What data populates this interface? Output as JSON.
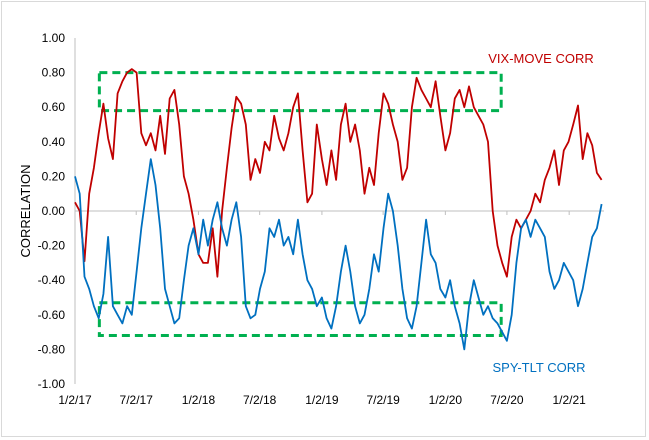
{
  "chart_data": {
    "type": "line",
    "title": "",
    "xlabel": "",
    "ylabel": "CORRELATION",
    "ylim": [
      -1.0,
      1.0
    ],
    "yticks": [
      "1.00",
      "0.80",
      "0.60",
      "0.40",
      "0.20",
      "0.00",
      "-0.20",
      "-0.40",
      "-0.60",
      "-0.80",
      "-1.00"
    ],
    "yticks_values": [
      1.0,
      0.8,
      0.6,
      0.4,
      0.2,
      0.0,
      -0.2,
      -0.4,
      -0.6,
      -0.8,
      -1.0
    ],
    "xticks": [
      "1/2/17",
      "7/2/17",
      "1/2/18",
      "7/2/18",
      "1/2/19",
      "7/2/19",
      "1/2/20",
      "7/2/20",
      "1/2/21"
    ],
    "xlim": [
      "2017-01-02",
      "2021-04-15"
    ],
    "grid": false,
    "series": [
      {
        "name": "VIX-MOVE CORR",
        "color": "#c00000",
        "points": [
          [
            "2017-01-02",
            0.05
          ],
          [
            "2017-01-16",
            0.0
          ],
          [
            "2017-01-30",
            -0.29
          ],
          [
            "2017-02-13",
            0.1
          ],
          [
            "2017-02-27",
            0.25
          ],
          [
            "2017-03-13",
            0.45
          ],
          [
            "2017-03-27",
            0.62
          ],
          [
            "2017-04-10",
            0.42
          ],
          [
            "2017-04-24",
            0.3
          ],
          [
            "2017-05-08",
            0.68
          ],
          [
            "2017-05-22",
            0.75
          ],
          [
            "2017-06-05",
            0.8
          ],
          [
            "2017-06-19",
            0.82
          ],
          [
            "2017-07-03",
            0.8
          ],
          [
            "2017-07-17",
            0.45
          ],
          [
            "2017-07-31",
            0.38
          ],
          [
            "2017-08-14",
            0.45
          ],
          [
            "2017-08-28",
            0.35
          ],
          [
            "2017-09-11",
            0.55
          ],
          [
            "2017-09-25",
            0.33
          ],
          [
            "2017-10-09",
            0.65
          ],
          [
            "2017-10-23",
            0.7
          ],
          [
            "2017-11-06",
            0.5
          ],
          [
            "2017-11-20",
            0.2
          ],
          [
            "2017-12-04",
            0.1
          ],
          [
            "2017-12-18",
            -0.05
          ],
          [
            "2018-01-02",
            -0.25
          ],
          [
            "2018-01-16",
            -0.3
          ],
          [
            "2018-01-30",
            -0.3
          ],
          [
            "2018-02-13",
            -0.1
          ],
          [
            "2018-02-27",
            -0.38
          ],
          [
            "2018-03-13",
            0.0
          ],
          [
            "2018-03-27",
            0.25
          ],
          [
            "2018-04-10",
            0.48
          ],
          [
            "2018-04-24",
            0.66
          ],
          [
            "2018-05-08",
            0.62
          ],
          [
            "2018-05-22",
            0.5
          ],
          [
            "2018-06-05",
            0.18
          ],
          [
            "2018-06-19",
            0.3
          ],
          [
            "2018-07-03",
            0.22
          ],
          [
            "2018-07-17",
            0.4
          ],
          [
            "2018-07-31",
            0.35
          ],
          [
            "2018-08-14",
            0.55
          ],
          [
            "2018-08-28",
            0.42
          ],
          [
            "2018-09-11",
            0.35
          ],
          [
            "2018-09-25",
            0.45
          ],
          [
            "2018-10-09",
            0.6
          ],
          [
            "2018-10-23",
            0.68
          ],
          [
            "2018-11-06",
            0.35
          ],
          [
            "2018-11-20",
            0.05
          ],
          [
            "2018-12-04",
            0.1
          ],
          [
            "2018-12-18",
            0.5
          ],
          [
            "2019-01-02",
            0.3
          ],
          [
            "2019-01-16",
            0.15
          ],
          [
            "2019-01-30",
            0.35
          ],
          [
            "2019-02-13",
            0.18
          ],
          [
            "2019-02-27",
            0.5
          ],
          [
            "2019-03-13",
            0.62
          ],
          [
            "2019-03-27",
            0.4
          ],
          [
            "2019-04-10",
            0.5
          ],
          [
            "2019-04-24",
            0.35
          ],
          [
            "2019-05-08",
            0.1
          ],
          [
            "2019-05-22",
            0.25
          ],
          [
            "2019-06-05",
            0.15
          ],
          [
            "2019-06-19",
            0.45
          ],
          [
            "2019-07-03",
            0.68
          ],
          [
            "2019-07-17",
            0.62
          ],
          [
            "2019-07-31",
            0.5
          ],
          [
            "2019-08-14",
            0.4
          ],
          [
            "2019-08-28",
            0.18
          ],
          [
            "2019-09-11",
            0.25
          ],
          [
            "2019-09-25",
            0.6
          ],
          [
            "2019-10-09",
            0.77
          ],
          [
            "2019-10-23",
            0.7
          ],
          [
            "2019-11-06",
            0.65
          ],
          [
            "2019-11-20",
            0.6
          ],
          [
            "2019-12-04",
            0.75
          ],
          [
            "2019-12-18",
            0.55
          ],
          [
            "2020-01-02",
            0.35
          ],
          [
            "2020-01-16",
            0.45
          ],
          [
            "2020-01-30",
            0.65
          ],
          [
            "2020-02-13",
            0.7
          ],
          [
            "2020-02-27",
            0.6
          ],
          [
            "2020-03-12",
            0.72
          ],
          [
            "2020-03-26",
            0.6
          ],
          [
            "2020-04-09",
            0.55
          ],
          [
            "2020-04-23",
            0.5
          ],
          [
            "2020-05-07",
            0.4
          ],
          [
            "2020-05-21",
            0.0
          ],
          [
            "2020-06-04",
            -0.2
          ],
          [
            "2020-06-18",
            -0.3
          ],
          [
            "2020-07-02",
            -0.38
          ],
          [
            "2020-07-16",
            -0.15
          ],
          [
            "2020-07-30",
            -0.05
          ],
          [
            "2020-08-13",
            -0.1
          ],
          [
            "2020-08-27",
            -0.05
          ],
          [
            "2020-09-10",
            0.0
          ],
          [
            "2020-09-24",
            0.1
          ],
          [
            "2020-10-08",
            0.05
          ],
          [
            "2020-10-22",
            0.18
          ],
          [
            "2020-11-05",
            0.25
          ],
          [
            "2020-11-19",
            0.35
          ],
          [
            "2020-12-03",
            0.15
          ],
          [
            "2020-12-17",
            0.35
          ],
          [
            "2020-12-31",
            0.4
          ],
          [
            "2021-01-14",
            0.5
          ],
          [
            "2021-01-28",
            0.61
          ],
          [
            "2021-02-11",
            0.3
          ],
          [
            "2021-02-25",
            0.45
          ],
          [
            "2021-03-11",
            0.38
          ],
          [
            "2021-03-25",
            0.22
          ],
          [
            "2021-04-08",
            0.18
          ]
        ]
      },
      {
        "name": "SPY-TLT CORR",
        "color": "#0070c0",
        "points": [
          [
            "2017-01-02",
            0.2
          ],
          [
            "2017-01-16",
            0.1
          ],
          [
            "2017-01-30",
            -0.38
          ],
          [
            "2017-02-13",
            -0.45
          ],
          [
            "2017-02-27",
            -0.55
          ],
          [
            "2017-03-13",
            -0.62
          ],
          [
            "2017-03-27",
            -0.48
          ],
          [
            "2017-04-10",
            -0.15
          ],
          [
            "2017-04-24",
            -0.55
          ],
          [
            "2017-05-08",
            -0.6
          ],
          [
            "2017-05-22",
            -0.65
          ],
          [
            "2017-06-05",
            -0.55
          ],
          [
            "2017-06-19",
            -0.6
          ],
          [
            "2017-07-03",
            -0.35
          ],
          [
            "2017-07-17",
            -0.1
          ],
          [
            "2017-07-31",
            0.1
          ],
          [
            "2017-08-14",
            0.3
          ],
          [
            "2017-08-28",
            0.15
          ],
          [
            "2017-09-11",
            -0.1
          ],
          [
            "2017-09-25",
            -0.45
          ],
          [
            "2017-10-09",
            -0.55
          ],
          [
            "2017-10-23",
            -0.65
          ],
          [
            "2017-11-06",
            -0.62
          ],
          [
            "2017-11-20",
            -0.4
          ],
          [
            "2017-12-04",
            -0.2
          ],
          [
            "2017-12-18",
            -0.1
          ],
          [
            "2018-01-02",
            -0.25
          ],
          [
            "2018-01-16",
            -0.05
          ],
          [
            "2018-01-30",
            -0.2
          ],
          [
            "2018-02-13",
            -0.05
          ],
          [
            "2018-02-27",
            0.05
          ],
          [
            "2018-03-13",
            -0.1
          ],
          [
            "2018-03-27",
            -0.2
          ],
          [
            "2018-04-10",
            -0.05
          ],
          [
            "2018-04-24",
            0.05
          ],
          [
            "2018-05-08",
            -0.15
          ],
          [
            "2018-05-22",
            -0.55
          ],
          [
            "2018-06-05",
            -0.62
          ],
          [
            "2018-06-19",
            -0.6
          ],
          [
            "2018-07-03",
            -0.45
          ],
          [
            "2018-07-17",
            -0.35
          ],
          [
            "2018-07-31",
            -0.1
          ],
          [
            "2018-08-14",
            -0.15
          ],
          [
            "2018-08-28",
            -0.05
          ],
          [
            "2018-09-11",
            -0.2
          ],
          [
            "2018-09-25",
            -0.15
          ],
          [
            "2018-10-09",
            -0.25
          ],
          [
            "2018-10-23",
            -0.05
          ],
          [
            "2018-11-06",
            -0.25
          ],
          [
            "2018-11-20",
            -0.4
          ],
          [
            "2018-12-04",
            -0.45
          ],
          [
            "2018-12-18",
            -0.55
          ],
          [
            "2019-01-02",
            -0.5
          ],
          [
            "2019-01-16",
            -0.62
          ],
          [
            "2019-01-30",
            -0.68
          ],
          [
            "2019-02-13",
            -0.55
          ],
          [
            "2019-02-27",
            -0.35
          ],
          [
            "2019-03-13",
            -0.2
          ],
          [
            "2019-03-27",
            -0.35
          ],
          [
            "2019-04-10",
            -0.55
          ],
          [
            "2019-04-24",
            -0.65
          ],
          [
            "2019-05-08",
            -0.6
          ],
          [
            "2019-05-22",
            -0.45
          ],
          [
            "2019-06-05",
            -0.25
          ],
          [
            "2019-06-19",
            -0.35
          ],
          [
            "2019-07-03",
            -0.1
          ],
          [
            "2019-07-17",
            0.1
          ],
          [
            "2019-07-31",
            0.0
          ],
          [
            "2019-08-14",
            -0.2
          ],
          [
            "2019-08-28",
            -0.45
          ],
          [
            "2019-09-11",
            -0.62
          ],
          [
            "2019-09-25",
            -0.68
          ],
          [
            "2019-10-09",
            -0.55
          ],
          [
            "2019-10-23",
            -0.3
          ],
          [
            "2019-11-06",
            -0.05
          ],
          [
            "2019-11-20",
            -0.25
          ],
          [
            "2019-12-04",
            -0.3
          ],
          [
            "2019-12-18",
            -0.45
          ],
          [
            "2020-01-02",
            -0.5
          ],
          [
            "2020-01-16",
            -0.4
          ],
          [
            "2020-01-30",
            -0.55
          ],
          [
            "2020-02-13",
            -0.65
          ],
          [
            "2020-02-27",
            -0.8
          ],
          [
            "2020-03-12",
            -0.55
          ],
          [
            "2020-03-26",
            -0.4
          ],
          [
            "2020-04-09",
            -0.5
          ],
          [
            "2020-04-23",
            -0.6
          ],
          [
            "2020-05-07",
            -0.55
          ],
          [
            "2020-05-21",
            -0.62
          ],
          [
            "2020-06-04",
            -0.65
          ],
          [
            "2020-06-18",
            -0.7
          ],
          [
            "2020-07-02",
            -0.75
          ],
          [
            "2020-07-16",
            -0.6
          ],
          [
            "2020-07-30",
            -0.3
          ],
          [
            "2020-08-13",
            -0.1
          ],
          [
            "2020-08-27",
            -0.05
          ],
          [
            "2020-09-10",
            -0.15
          ],
          [
            "2020-09-24",
            -0.05
          ],
          [
            "2020-10-08",
            -0.1
          ],
          [
            "2020-10-22",
            -0.15
          ],
          [
            "2020-11-05",
            -0.35
          ],
          [
            "2020-11-19",
            -0.45
          ],
          [
            "2020-12-03",
            -0.4
          ],
          [
            "2020-12-17",
            -0.3
          ],
          [
            "2020-12-31",
            -0.35
          ],
          [
            "2021-01-14",
            -0.4
          ],
          [
            "2021-01-28",
            -0.55
          ],
          [
            "2021-02-11",
            -0.45
          ],
          [
            "2021-02-25",
            -0.3
          ],
          [
            "2021-03-11",
            -0.15
          ],
          [
            "2021-03-25",
            -0.1
          ],
          [
            "2021-04-08",
            0.04
          ]
        ]
      }
    ],
    "annotations": [
      {
        "text": "VIX-MOVE CORR",
        "color": "#c00000"
      },
      {
        "text": "SPY-TLT CORR",
        "color": "#0070c0"
      }
    ],
    "highlight_boxes": [
      {
        "x_from": "2017-03-15",
        "x_to": "2020-06-15",
        "y_from": 0.58,
        "y_to": 0.8,
        "color": "#00b050"
      },
      {
        "x_from": "2017-03-15",
        "x_to": "2020-06-15",
        "y_from": -0.72,
        "y_to": -0.53,
        "color": "#00b050"
      }
    ]
  }
}
